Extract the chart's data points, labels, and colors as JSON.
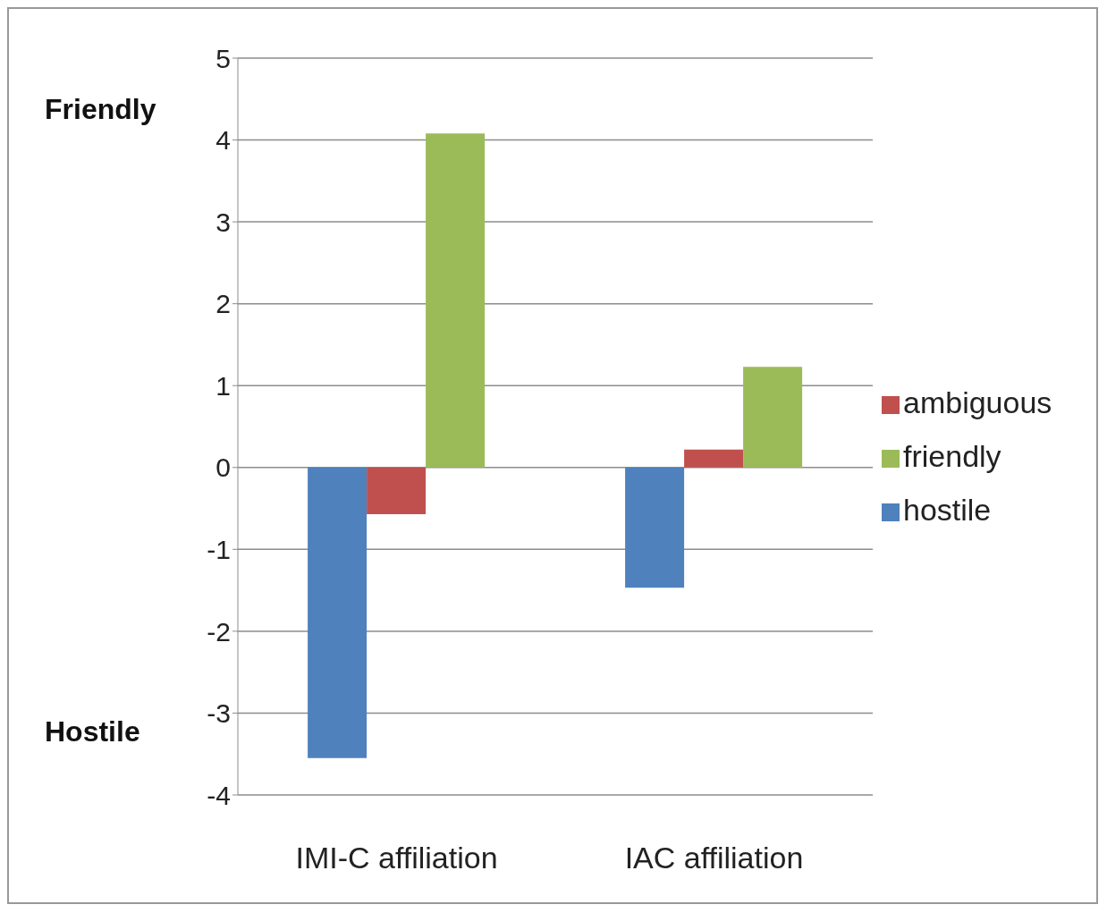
{
  "chart_data": {
    "type": "bar",
    "categories": [
      "IMI-C affiliation",
      "IAC affiliation"
    ],
    "series": [
      {
        "name": "hostile",
        "color": "#4f81bd",
        "values": [
          -3.55,
          -1.47
        ]
      },
      {
        "name": "ambiguous",
        "color": "#c0504d",
        "values": [
          -0.57,
          0.22
        ]
      },
      {
        "name": "friendly",
        "color": "#9bbb59",
        "values": [
          4.08,
          1.23
        ]
      }
    ],
    "ylim": [
      -4,
      5
    ],
    "yticks": [
      -4,
      -3,
      -2,
      -1,
      0,
      1,
      2,
      3,
      4,
      5
    ],
    "grid": "y",
    "legend": "right",
    "annotations": [
      "Friendly",
      "Hostile"
    ]
  }
}
